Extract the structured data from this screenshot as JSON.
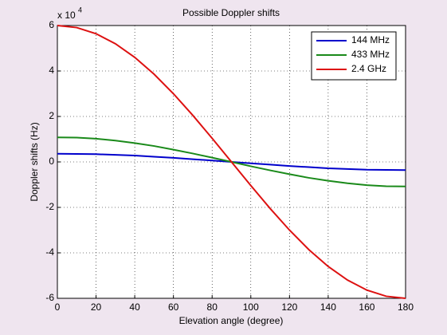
{
  "chart_data": {
    "type": "line",
    "title": "Possible Doppler shifts",
    "x_label": "Elevation angle (degree)",
    "y_label": "Doppler shifts (Hz)",
    "y_multiplier": {
      "base": "x 10",
      "power": "4"
    },
    "x": [
      0,
      10,
      20,
      30,
      40,
      50,
      60,
      70,
      80,
      90,
      100,
      110,
      120,
      130,
      140,
      150,
      160,
      170,
      180
    ],
    "series": [
      {
        "name": "144 MHz",
        "color": "#0000cc",
        "values": [
          0.36,
          0.35,
          0.34,
          0.31,
          0.28,
          0.23,
          0.18,
          0.12,
          0.06,
          0,
          -0.06,
          -0.12,
          -0.18,
          -0.23,
          -0.28,
          -0.31,
          -0.34,
          -0.35,
          -0.36
        ]
      },
      {
        "name": "433 MHz",
        "color": "#1a8a1a",
        "values": [
          1.08,
          1.07,
          1.02,
          0.94,
          0.83,
          0.7,
          0.54,
          0.37,
          0.19,
          0,
          -0.19,
          -0.37,
          -0.54,
          -0.7,
          -0.83,
          -0.94,
          -1.02,
          -1.07,
          -1.08
        ]
      },
      {
        "name": "2.4 GHz",
        "color": "#dd1111",
        "values": [
          6,
          5.91,
          5.64,
          5.2,
          4.6,
          3.86,
          3,
          2.05,
          1.04,
          0,
          -1.04,
          -2.05,
          -3,
          -3.86,
          -4.6,
          -5.2,
          -5.64,
          -5.91,
          -6
        ]
      }
    ],
    "xlim": [
      0,
      180
    ],
    "xticks": [
      0,
      20,
      40,
      60,
      80,
      100,
      120,
      140,
      160,
      180
    ],
    "ylim": [
      -6,
      6
    ],
    "yticks": [
      -6,
      -4,
      -2,
      0,
      2,
      4,
      6
    ],
    "grid": true,
    "legend": "top-right"
  }
}
